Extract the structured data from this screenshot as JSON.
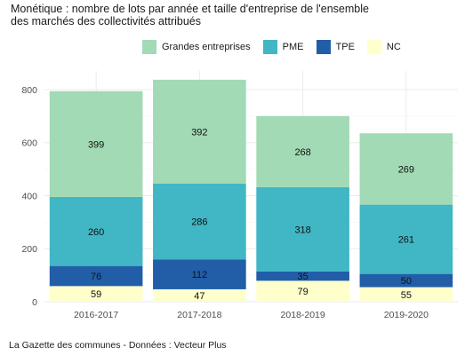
{
  "title": "Monétique : nombre de lots par année et taille d'entreprise de l'ensemble\ndes marchés des collectivités attribués",
  "source": "La Gazette des communes - Données : Vecteur Plus",
  "chart_data": {
    "type": "bar",
    "stacked": true,
    "categories": [
      "2016-2017",
      "2017-2018",
      "2018-2019",
      "2019-2020"
    ],
    "series": [
      {
        "name": "NC",
        "color": "#ffffcc",
        "values": [
          59,
          47,
          79,
          55
        ]
      },
      {
        "name": "TPE",
        "color": "#225ea8",
        "values": [
          76,
          112,
          35,
          50
        ]
      },
      {
        "name": "PME",
        "color": "#41b6c4",
        "values": [
          260,
          286,
          318,
          261
        ]
      },
      {
        "name": "Grandes entreprises",
        "color": "#a1dab4",
        "values": [
          399,
          392,
          268,
          269
        ]
      }
    ],
    "legend_order": [
      "Grandes entreprises",
      "PME",
      "TPE",
      "NC"
    ],
    "legend_position": "top",
    "yticks": [
      0,
      200,
      400,
      600,
      800
    ],
    "ylim": [
      0,
      870
    ],
    "grid": true,
    "data_labels": true
  }
}
